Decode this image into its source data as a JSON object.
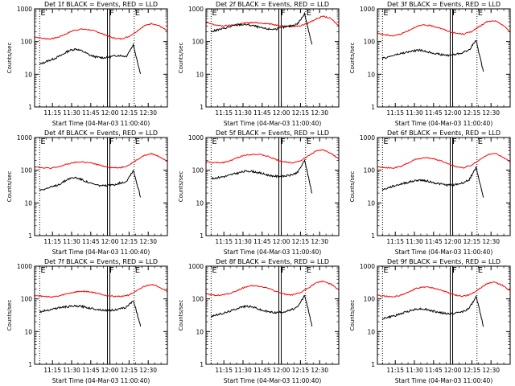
{
  "chart_data": [
    {
      "type": "line",
      "title": "Det 1f BLACK = Events, RED = LLD",
      "xlabel": "Start Time (04-Mar-03 11:00:40)",
      "ylabel": "Counts/sec",
      "yscale": "log",
      "ylim": [
        1,
        1000
      ],
      "x_tick_labels": [
        "11:15",
        "11:30",
        "11:45",
        "12:00",
        "12:15",
        "12:30"
      ],
      "y_tick_labels": [
        "1",
        "10",
        "100",
        "1000"
      ],
      "markers": [
        {
          "label": "E",
          "time": "11:05"
        },
        {
          "label": "F",
          "time": "11:59"
        },
        {
          "label": "E",
          "time": "12:19"
        }
      ],
      "series": [
        {
          "color": "#000000",
          "start_time": "11:05",
          "end_time": "12:24",
          "values": [
            20,
            25,
            30,
            38,
            52,
            60,
            50,
            38,
            33,
            32,
            35,
            38,
            35,
            80,
            10
          ]
        },
        {
          "color": "#ff0000",
          "values": [
            140,
            125,
            120,
            135,
            170,
            220,
            240,
            230,
            200,
            160,
            130,
            120,
            140,
            200,
            300,
            360,
            300,
            210
          ]
        }
      ]
    },
    {
      "type": "line",
      "title": "Det 2f BLACK = Events, RED = LLD",
      "xlabel": "Start Time (04-Mar-03 11:00:40)",
      "ylabel": "Counts/sec",
      "yscale": "log",
      "ylim": [
        1,
        1000
      ],
      "x_tick_labels": [
        "11:15",
        "11:30",
        "11:45",
        "12:00",
        "12:15",
        "12:30"
      ],
      "y_tick_labels": [
        "1",
        "10",
        "100",
        "1000"
      ],
      "markers": [
        {
          "label": "E",
          "time": "11:05"
        },
        {
          "label": "F",
          "time": "11:59"
        },
        {
          "label": "E",
          "time": "12:19"
        }
      ],
      "series": [
        {
          "color": "#000000",
          "start_time": "11:05",
          "end_time": "12:24",
          "values": [
            200,
            230,
            260,
            300,
            330,
            330,
            300,
            260,
            240,
            240,
            270,
            300,
            350,
            700,
            80
          ]
        },
        {
          "color": "#ff0000",
          "values": [
            380,
            330,
            300,
            310,
            340,
            370,
            380,
            370,
            350,
            320,
            300,
            290,
            300,
            360,
            480,
            600,
            500,
            300
          ]
        }
      ]
    },
    {
      "type": "line",
      "title": "Det 3f BLACK = Events, RED = LLD",
      "xlabel": "Start Time (04-Mar-03 11:00:40)",
      "ylabel": "Counts/sec",
      "yscale": "log",
      "ylim": [
        1,
        1000
      ],
      "x_tick_labels": [
        "11:15",
        "11:30",
        "11:45",
        "12:00",
        "12:15",
        "12:30"
      ],
      "y_tick_labels": [
        "1",
        "10",
        "100",
        "1000"
      ],
      "markers": [
        {
          "label": "E",
          "time": "11:05"
        },
        {
          "label": "F",
          "time": "11:59"
        },
        {
          "label": "E",
          "time": "12:19"
        }
      ],
      "series": [
        {
          "color": "#000000",
          "start_time": "11:05",
          "end_time": "12:24",
          "values": [
            30,
            35,
            40,
            45,
            50,
            55,
            50,
            45,
            40,
            38,
            40,
            45,
            55,
            110,
            12
          ]
        },
        {
          "color": "#ff0000",
          "values": [
            180,
            160,
            150,
            170,
            220,
            290,
            320,
            300,
            260,
            210,
            180,
            170,
            200,
            280,
            400,
            430,
            330,
            200
          ]
        }
      ]
    },
    {
      "type": "line",
      "title": "Det 4f BLACK = Events, RED = LLD",
      "xlabel": "Start Time (04-Mar-03 11:00:40)",
      "ylabel": "Counts/sec",
      "yscale": "log",
      "ylim": [
        1,
        1000
      ],
      "x_tick_labels": [
        "11:15",
        "11:30",
        "11:45",
        "12:00",
        "12:15",
        "12:30"
      ],
      "y_tick_labels": [
        "1",
        "10",
        "100",
        "1000"
      ],
      "markers": [
        {
          "label": "E",
          "time": "11:05"
        },
        {
          "label": "F",
          "time": "11:59"
        },
        {
          "label": "E",
          "time": "12:19"
        }
      ],
      "series": [
        {
          "color": "#000000",
          "start_time": "11:05",
          "end_time": "12:24",
          "values": [
            25,
            28,
            32,
            40,
            55,
            60,
            50,
            40,
            35,
            33,
            35,
            40,
            45,
            100,
            15
          ]
        },
        {
          "color": "#ff0000",
          "values": [
            130,
            120,
            115,
            125,
            150,
            170,
            180,
            170,
            150,
            130,
            120,
            120,
            140,
            200,
            280,
            320,
            260,
            190
          ]
        }
      ]
    },
    {
      "type": "line",
      "title": "Det 5f BLACK = Events, RED = LLD",
      "xlabel": "Start Time (04-Mar-03 11:00:40)",
      "ylabel": "Counts/sec",
      "yscale": "log",
      "ylim": [
        1,
        1000
      ],
      "x_tick_labels": [
        "11:15",
        "11:30",
        "11:45",
        "12:00",
        "12:15",
        "12:30"
      ],
      "y_tick_labels": [
        "1",
        "10",
        "100",
        "1000"
      ],
      "markers": [
        {
          "label": "E",
          "time": "11:05"
        },
        {
          "label": "F",
          "time": "11:59"
        },
        {
          "label": "E",
          "time": "12:19"
        }
      ],
      "series": [
        {
          "color": "#000000",
          "start_time": "11:05",
          "end_time": "12:24",
          "values": [
            55,
            60,
            65,
            75,
            85,
            95,
            90,
            80,
            70,
            65,
            65,
            70,
            85,
            200,
            20
          ]
        },
        {
          "color": "#ff0000",
          "values": [
            180,
            170,
            170,
            190,
            240,
            290,
            310,
            300,
            260,
            210,
            180,
            170,
            190,
            260,
            380,
            420,
            330,
            220
          ]
        }
      ]
    },
    {
      "type": "line",
      "title": "Det 6f BLACK = Events, RED = LLD",
      "xlabel": "Start Time (04-Mar-03 11:00:40)",
      "ylabel": "Counts/sec",
      "yscale": "log",
      "ylim": [
        1,
        1000
      ],
      "x_tick_labels": [
        "11:15",
        "11:30",
        "11:45",
        "12:00",
        "12:15",
        "12:30"
      ],
      "y_tick_labels": [
        "1",
        "10",
        "100",
        "1000"
      ],
      "markers": [
        {
          "label": "E",
          "time": "11:05"
        },
        {
          "label": "F",
          "time": "11:59"
        },
        {
          "label": "E",
          "time": "12:19"
        }
      ],
      "series": [
        {
          "color": "#000000",
          "start_time": "11:05",
          "end_time": "12:24",
          "values": [
            25,
            30,
            35,
            40,
            45,
            50,
            48,
            42,
            38,
            35,
            36,
            40,
            50,
            120,
            15
          ]
        },
        {
          "color": "#ff0000",
          "values": [
            130,
            120,
            115,
            130,
            170,
            220,
            240,
            230,
            200,
            160,
            130,
            120,
            140,
            200,
            290,
            330,
            260,
            180
          ]
        }
      ]
    },
    {
      "type": "line",
      "title": "Det 7f BLACK = Events, RED = LLD",
      "xlabel": "Start Time (04-Mar-03 11:00:40)",
      "ylabel": "Counts/sec",
      "yscale": "log",
      "ylim": [
        1,
        1000
      ],
      "x_tick_labels": [
        "11:15",
        "11:30",
        "11:45",
        "12:00",
        "12:15",
        "12:30"
      ],
      "y_tick_labels": [
        "1",
        "10",
        "100",
        "1000"
      ],
      "markers": [
        {
          "label": "E",
          "time": "11:05"
        },
        {
          "label": "F",
          "time": "11:59"
        },
        {
          "label": "E",
          "time": "12:19"
        }
      ],
      "series": [
        {
          "color": "#000000",
          "start_time": "11:05",
          "end_time": "12:24",
          "values": [
            40,
            45,
            50,
            55,
            58,
            60,
            58,
            52,
            48,
            45,
            45,
            48,
            55,
            90,
            15
          ]
        },
        {
          "color": "#ff0000",
          "values": [
            130,
            120,
            115,
            120,
            140,
            160,
            170,
            165,
            150,
            130,
            120,
            120,
            130,
            170,
            240,
            280,
            230,
            170
          ]
        }
      ]
    },
    {
      "type": "line",
      "title": "Det 8f BLACK = Events, RED = LLD",
      "xlabel": "Start Time (04-Mar-03 11:00:40)",
      "ylabel": "Counts/sec",
      "yscale": "log",
      "ylim": [
        1,
        1000
      ],
      "x_tick_labels": [
        "11:15",
        "11:30",
        "11:45",
        "12:00",
        "12:15",
        "12:30"
      ],
      "y_tick_labels": [
        "1",
        "10",
        "100",
        "1000"
      ],
      "markers": [
        {
          "label": "E",
          "time": "11:05"
        },
        {
          "label": "F",
          "time": "11:59"
        },
        {
          "label": "E",
          "time": "12:19"
        }
      ],
      "series": [
        {
          "color": "#000000",
          "start_time": "11:05",
          "end_time": "12:24",
          "values": [
            30,
            33,
            38,
            45,
            55,
            60,
            55,
            45,
            40,
            38,
            40,
            45,
            55,
            130,
            15
          ]
        },
        {
          "color": "#ff0000",
          "values": [
            140,
            130,
            130,
            145,
            180,
            230,
            250,
            240,
            210,
            170,
            140,
            130,
            150,
            210,
            300,
            350,
            280,
            190
          ]
        }
      ]
    },
    {
      "type": "line",
      "title": "Det 9f BLACK = Events, RED = LLD",
      "xlabel": "Start Time (04-Mar-03 11:00:40)",
      "ylabel": "Counts/sec",
      "yscale": "log",
      "ylim": [
        1,
        1000
      ],
      "x_tick_labels": [
        "11:15",
        "11:30",
        "11:45",
        "12:00",
        "12:15",
        "12:30"
      ],
      "y_tick_labels": [
        "1",
        "10",
        "100",
        "1000"
      ],
      "markers": [
        {
          "label": "E",
          "time": "11:05"
        },
        {
          "label": "F",
          "time": "11:59"
        },
        {
          "label": "E",
          "time": "12:19"
        }
      ],
      "series": [
        {
          "color": "#000000",
          "start_time": "11:05",
          "end_time": "12:24",
          "values": [
            25,
            28,
            32,
            38,
            45,
            50,
            48,
            42,
            38,
            35,
            36,
            40,
            50,
            120,
            15
          ]
        },
        {
          "color": "#ff0000",
          "values": [
            130,
            120,
            115,
            130,
            165,
            210,
            230,
            220,
            190,
            155,
            130,
            120,
            140,
            200,
            290,
            330,
            260,
            180
          ]
        }
      ]
    }
  ]
}
